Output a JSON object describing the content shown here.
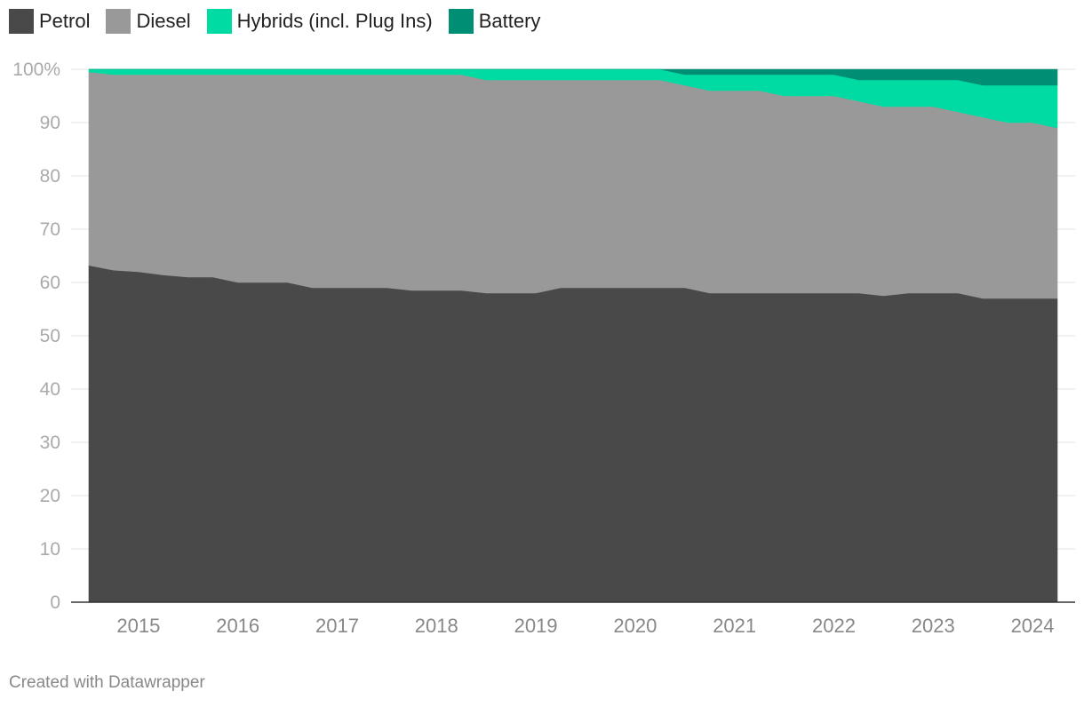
{
  "legend": [
    {
      "label": "Petrol",
      "color": "#494949"
    },
    {
      "label": "Diesel",
      "color": "#999999"
    },
    {
      "label": "Hybrids (incl. Plug Ins)",
      "color": "#00DBA3"
    },
    {
      "label": "Battery",
      "color": "#008F75"
    }
  ],
  "footer": "Created with Datawrapper",
  "chart_data": {
    "type": "area",
    "stacked": true,
    "x": [
      2014.5,
      2014.75,
      2015,
      2015.25,
      2015.5,
      2015.75,
      2016,
      2016.25,
      2016.5,
      2016.75,
      2017,
      2017.25,
      2017.5,
      2017.75,
      2018,
      2018.25,
      2018.5,
      2018.75,
      2019,
      2019.25,
      2019.5,
      2019.75,
      2020,
      2020.25,
      2020.5,
      2020.75,
      2021,
      2021.25,
      2021.5,
      2021.75,
      2022,
      2022.25,
      2022.5,
      2022.75,
      2023,
      2023.25,
      2023.5,
      2023.75,
      2024,
      2024.25
    ],
    "series": [
      {
        "name": "Petrol",
        "color": "#494949",
        "values": [
          63.2,
          62.3,
          62,
          61.4,
          61,
          61,
          60,
          60,
          60,
          59,
          59,
          59,
          59,
          58.5,
          58.5,
          58.5,
          58,
          58,
          58,
          59,
          59,
          59,
          59,
          59,
          59,
          58,
          58,
          58,
          58,
          58,
          58,
          58,
          57.5,
          58,
          58,
          58,
          57,
          57,
          57,
          57
        ]
      },
      {
        "name": "Diesel",
        "color": "#999999",
        "values": [
          36.3,
          36.7,
          37,
          37.6,
          38,
          38,
          39,
          39,
          39,
          40,
          40,
          40,
          40,
          40.5,
          40.5,
          40.5,
          40,
          40,
          40,
          39,
          39,
          39,
          39,
          39,
          38,
          38,
          38,
          38,
          37,
          37,
          37,
          36,
          35.5,
          35,
          35,
          34,
          34,
          33,
          33,
          32
        ]
      },
      {
        "name": "Hybrids (incl. Plug Ins)",
        "color": "#00DBA3",
        "values": [
          0.5,
          1,
          1,
          1,
          1,
          1,
          1,
          1,
          1,
          1,
          1,
          1,
          1,
          1,
          1,
          1,
          2,
          2,
          2,
          2,
          2,
          2,
          2,
          2,
          2,
          3,
          3,
          3,
          4,
          4,
          4,
          4,
          5,
          5,
          5,
          6,
          6,
          7,
          7,
          8
        ]
      },
      {
        "name": "Battery",
        "color": "#008F75",
        "values": [
          0,
          0,
          0,
          0,
          0,
          0,
          0,
          0,
          0,
          0,
          0,
          0,
          0,
          0,
          0,
          0,
          0,
          0,
          0,
          0,
          0,
          0,
          0,
          0,
          1,
          1,
          1,
          1,
          1,
          1,
          1,
          2,
          2,
          2,
          2,
          2,
          3,
          3,
          3,
          3
        ]
      }
    ],
    "yticks": [
      0,
      10,
      20,
      30,
      40,
      50,
      60,
      70,
      80,
      90,
      100
    ],
    "ytick_labels": [
      "0",
      "10",
      "20",
      "30",
      "40",
      "50",
      "60",
      "70",
      "80",
      "90",
      "100%"
    ],
    "xticks": [
      2015,
      2016,
      2017,
      2018,
      2019,
      2020,
      2021,
      2022,
      2023,
      2024
    ],
    "xtick_labels": [
      "2015",
      "2016",
      "2017",
      "2018",
      "2019",
      "2020",
      "2021",
      "2022",
      "2023",
      "2024"
    ],
    "ylim": [
      0,
      100
    ],
    "xlim": [
      2014.5,
      2024.25
    ],
    "grid": true,
    "legend_position": "top-left"
  }
}
